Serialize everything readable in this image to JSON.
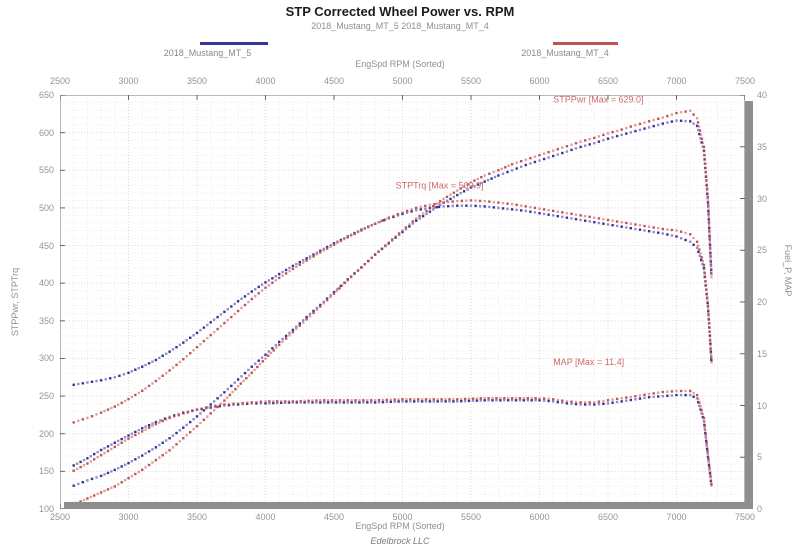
{
  "page": {
    "footer": "Edelbrock LLC"
  },
  "legend": {
    "items": [
      {
        "label": "2018_Mustang_MT_5",
        "color": "#34349b"
      },
      {
        "label": "2018_Mustang_MT_4",
        "color": "#c05454"
      }
    ]
  },
  "colors": {
    "grid_minor": "#f4e9e9",
    "grid_major": "#e8d5d5",
    "tick_mark": "#666666",
    "plot_border": "#b8b8b8",
    "shadow_bar": "#8e8e8e",
    "annotation_red": "#cc6a6a"
  },
  "chart_data": {
    "type": "scatter",
    "title": "STP Corrected Wheel Power vs. RPM",
    "subtitle": "2018_Mustang_MT_5 2018_Mustang_MT_4",
    "x_label": "EngSpd RPM  (Sorted)",
    "y_left_label": "STPPwr, STPTrq",
    "y_right_label": "Fuel_P, MAP",
    "x_range": [
      2500,
      7500
    ],
    "y_left_range": [
      100,
      650
    ],
    "y_right_range": [
      0,
      40
    ],
    "x_ticks": [
      2500,
      3000,
      3500,
      4000,
      4500,
      5000,
      5500,
      6000,
      6500,
      7000,
      7500
    ],
    "y_left_ticks": [
      650,
      600,
      550,
      500,
      450,
      400,
      350,
      300,
      250,
      200,
      150,
      100
    ],
    "y_right_ticks": [
      40,
      35,
      30,
      25,
      20,
      15,
      10,
      5,
      0
    ],
    "grid": "on",
    "legend_position": "top",
    "series": [
      {
        "name": "STPTrq 2018_Mustang_MT_5",
        "axis": "left",
        "color": "#34349b",
        "points": [
          [
            2600,
            265
          ],
          [
            2700,
            268
          ],
          [
            2800,
            271
          ],
          [
            2900,
            275
          ],
          [
            3000,
            281
          ],
          [
            3100,
            289
          ],
          [
            3200,
            298
          ],
          [
            3300,
            309
          ],
          [
            3400,
            321
          ],
          [
            3500,
            334
          ],
          [
            3600,
            348
          ],
          [
            3700,
            362
          ],
          [
            3800,
            376
          ],
          [
            3900,
            389
          ],
          [
            4000,
            401
          ],
          [
            4100,
            412
          ],
          [
            4200,
            423
          ],
          [
            4300,
            433
          ],
          [
            4400,
            443
          ],
          [
            4500,
            453
          ],
          [
            4600,
            462
          ],
          [
            4700,
            471
          ],
          [
            4800,
            479
          ],
          [
            4900,
            486
          ],
          [
            5000,
            492
          ],
          [
            5100,
            497
          ],
          [
            5200,
            500
          ],
          [
            5300,
            502
          ],
          [
            5400,
            503
          ],
          [
            5500,
            503
          ],
          [
            5600,
            502
          ],
          [
            5700,
            500
          ],
          [
            5800,
            498
          ],
          [
            5900,
            496
          ],
          [
            6000,
            493
          ],
          [
            6100,
            490
          ],
          [
            6200,
            487
          ],
          [
            6300,
            484
          ],
          [
            6400,
            481
          ],
          [
            6500,
            478
          ],
          [
            6600,
            475
          ],
          [
            6700,
            472
          ],
          [
            6800,
            469
          ],
          [
            6900,
            466
          ],
          [
            7000,
            462
          ],
          [
            7100,
            455
          ],
          [
            7150,
            447
          ],
          [
            7200,
            420
          ],
          [
            7230,
            368
          ],
          [
            7255,
            298
          ]
        ]
      },
      {
        "name": "STPPwr 2018_Mustang_MT_5",
        "axis": "left",
        "color": "#34349b",
        "points": [
          [
            2600,
            131
          ],
          [
            2700,
            138
          ],
          [
            2800,
            144
          ],
          [
            2900,
            152
          ],
          [
            3000,
            161
          ],
          [
            3100,
            171
          ],
          [
            3200,
            182
          ],
          [
            3300,
            194
          ],
          [
            3400,
            208
          ],
          [
            3500,
            223
          ],
          [
            3600,
            239
          ],
          [
            3700,
            255
          ],
          [
            3800,
            272
          ],
          [
            3900,
            289
          ],
          [
            4000,
            305
          ],
          [
            4100,
            322
          ],
          [
            4200,
            338
          ],
          [
            4300,
            355
          ],
          [
            4400,
            371
          ],
          [
            4500,
            388
          ],
          [
            4600,
            405
          ],
          [
            4700,
            421
          ],
          [
            4800,
            438
          ],
          [
            4900,
            453
          ],
          [
            5000,
            468
          ],
          [
            5100,
            483
          ],
          [
            5200,
            495
          ],
          [
            5300,
            507
          ],
          [
            5400,
            517
          ],
          [
            5500,
            527
          ],
          [
            5600,
            535
          ],
          [
            5700,
            543
          ],
          [
            5800,
            550
          ],
          [
            5900,
            557
          ],
          [
            6000,
            563
          ],
          [
            6100,
            569
          ],
          [
            6200,
            575
          ],
          [
            6300,
            581
          ],
          [
            6400,
            586
          ],
          [
            6500,
            592
          ],
          [
            6600,
            597
          ],
          [
            6700,
            602
          ],
          [
            6800,
            607
          ],
          [
            6900,
            612
          ],
          [
            7000,
            616
          ],
          [
            7100,
            615
          ],
          [
            7150,
            609
          ],
          [
            7200,
            576
          ],
          [
            7230,
            507
          ],
          [
            7255,
            412
          ]
        ]
      },
      {
        "name": "MAP 2018_Mustang_MT_5",
        "axis": "right",
        "color": "#34349b",
        "points": [
          [
            2600,
            4.2
          ],
          [
            2700,
            4.9
          ],
          [
            2800,
            5.7
          ],
          [
            2900,
            6.4
          ],
          [
            3000,
            7.1
          ],
          [
            3100,
            7.8
          ],
          [
            3200,
            8.4
          ],
          [
            3300,
            8.9
          ],
          [
            3400,
            9.3
          ],
          [
            3500,
            9.6
          ],
          [
            3600,
            9.8
          ],
          [
            3700,
            10.0
          ],
          [
            3800,
            10.1
          ],
          [
            3900,
            10.2
          ],
          [
            4000,
            10.2
          ],
          [
            4200,
            10.3
          ],
          [
            4400,
            10.3
          ],
          [
            4600,
            10.3
          ],
          [
            4800,
            10.3
          ],
          [
            5000,
            10.4
          ],
          [
            5200,
            10.4
          ],
          [
            5400,
            10.4
          ],
          [
            5600,
            10.5
          ],
          [
            5800,
            10.5
          ],
          [
            6000,
            10.5
          ],
          [
            6100,
            10.4
          ],
          [
            6200,
            10.2
          ],
          [
            6300,
            10.1
          ],
          [
            6400,
            10.1
          ],
          [
            6500,
            10.2
          ],
          [
            6600,
            10.4
          ],
          [
            6700,
            10.6
          ],
          [
            6800,
            10.8
          ],
          [
            6900,
            10.9
          ],
          [
            7000,
            11.0
          ],
          [
            7100,
            11.0
          ],
          [
            7150,
            10.7
          ],
          [
            7200,
            8.5
          ],
          [
            7230,
            5.0
          ],
          [
            7255,
            2.3
          ]
        ]
      },
      {
        "name": "STPTrq 2018_Mustang_MT_4",
        "axis": "left",
        "color": "#c05454",
        "points": [
          [
            2600,
            215
          ],
          [
            2700,
            221
          ],
          [
            2800,
            228
          ],
          [
            2900,
            236
          ],
          [
            3000,
            246
          ],
          [
            3100,
            257
          ],
          [
            3200,
            270
          ],
          [
            3300,
            284
          ],
          [
            3400,
            299
          ],
          [
            3500,
            315
          ],
          [
            3600,
            331
          ],
          [
            3700,
            347
          ],
          [
            3800,
            363
          ],
          [
            3900,
            379
          ],
          [
            4000,
            394
          ],
          [
            4100,
            407
          ],
          [
            4200,
            419
          ],
          [
            4300,
            430
          ],
          [
            4400,
            441
          ],
          [
            4500,
            451
          ],
          [
            4600,
            461
          ],
          [
            4700,
            470
          ],
          [
            4800,
            479
          ],
          [
            4900,
            487
          ],
          [
            5000,
            494
          ],
          [
            5100,
            500
          ],
          [
            5200,
            504
          ],
          [
            5300,
            507
          ],
          [
            5400,
            509
          ],
          [
            5500,
            510
          ],
          [
            5600,
            509
          ],
          [
            5700,
            507
          ],
          [
            5800,
            505
          ],
          [
            5900,
            502
          ],
          [
            6000,
            499
          ],
          [
            6100,
            496
          ],
          [
            6200,
            493
          ],
          [
            6300,
            490
          ],
          [
            6400,
            487
          ],
          [
            6500,
            484
          ],
          [
            6600,
            481
          ],
          [
            6700,
            478
          ],
          [
            6800,
            475
          ],
          [
            6900,
            472
          ],
          [
            7000,
            470
          ],
          [
            7100,
            465
          ],
          [
            7150,
            455
          ],
          [
            7200,
            424
          ],
          [
            7230,
            370
          ],
          [
            7255,
            295
          ]
        ]
      },
      {
        "name": "STPPwr 2018_Mustang_MT_4",
        "axis": "left",
        "color": "#c05454",
        "points": [
          [
            2600,
            106
          ],
          [
            2700,
            114
          ],
          [
            2800,
            122
          ],
          [
            2900,
            130
          ],
          [
            3000,
            141
          ],
          [
            3100,
            152
          ],
          [
            3200,
            165
          ],
          [
            3300,
            178
          ],
          [
            3400,
            194
          ],
          [
            3500,
            210
          ],
          [
            3600,
            227
          ],
          [
            3700,
            244
          ],
          [
            3800,
            263
          ],
          [
            3900,
            281
          ],
          [
            4000,
            300
          ],
          [
            4100,
            318
          ],
          [
            4200,
            335
          ],
          [
            4300,
            352
          ],
          [
            4400,
            369
          ],
          [
            4500,
            386
          ],
          [
            4600,
            404
          ],
          [
            4700,
            421
          ],
          [
            4800,
            438
          ],
          [
            4900,
            454
          ],
          [
            5000,
            470
          ],
          [
            5100,
            486
          ],
          [
            5200,
            499
          ],
          [
            5300,
            512
          ],
          [
            5400,
            523
          ],
          [
            5500,
            534
          ],
          [
            5600,
            543
          ],
          [
            5700,
            550
          ],
          [
            5800,
            558
          ],
          [
            5900,
            564
          ],
          [
            6000,
            570
          ],
          [
            6100,
            576
          ],
          [
            6200,
            582
          ],
          [
            6300,
            588
          ],
          [
            6400,
            593
          ],
          [
            6500,
            599
          ],
          [
            6600,
            604
          ],
          [
            6700,
            610
          ],
          [
            6800,
            615
          ],
          [
            6900,
            620
          ],
          [
            7000,
            626
          ],
          [
            7100,
            629
          ],
          [
            7150,
            619
          ],
          [
            7200,
            581
          ],
          [
            7230,
            509
          ],
          [
            7255,
            408
          ]
        ]
      },
      {
        "name": "MAP 2018_Mustang_MT_4",
        "axis": "right",
        "color": "#c05454",
        "points": [
          [
            2600,
            3.7
          ],
          [
            2700,
            4.4
          ],
          [
            2800,
            5.2
          ],
          [
            2900,
            6.0
          ],
          [
            3000,
            6.8
          ],
          [
            3100,
            7.5
          ],
          [
            3200,
            8.2
          ],
          [
            3300,
            8.8
          ],
          [
            3400,
            9.2
          ],
          [
            3500,
            9.6
          ],
          [
            3600,
            9.9
          ],
          [
            3700,
            10.1
          ],
          [
            3800,
            10.2
          ],
          [
            3900,
            10.3
          ],
          [
            4000,
            10.4
          ],
          [
            4200,
            10.4
          ],
          [
            4400,
            10.5
          ],
          [
            4600,
            10.5
          ],
          [
            4800,
            10.5
          ],
          [
            5000,
            10.6
          ],
          [
            5200,
            10.6
          ],
          [
            5400,
            10.6
          ],
          [
            5600,
            10.7
          ],
          [
            5800,
            10.7
          ],
          [
            6000,
            10.7
          ],
          [
            6100,
            10.6
          ],
          [
            6200,
            10.4
          ],
          [
            6300,
            10.3
          ],
          [
            6400,
            10.3
          ],
          [
            6500,
            10.5
          ],
          [
            6600,
            10.7
          ],
          [
            6700,
            10.9
          ],
          [
            6800,
            11.1
          ],
          [
            6900,
            11.3
          ],
          [
            7000,
            11.4
          ],
          [
            7100,
            11.4
          ],
          [
            7150,
            11.0
          ],
          [
            7200,
            8.8
          ],
          [
            7230,
            5.2
          ],
          [
            7255,
            2.4
          ]
        ]
      }
    ],
    "annotations": [
      {
        "text": "STPPwr  [Max = 629.0]",
        "x": 6100,
        "y": 640,
        "axis": "left",
        "color": "#cc6a6a"
      },
      {
        "text": "STPTrq  [Max = 509.9]",
        "x": 4950,
        "y": 526,
        "axis": "left",
        "color": "#cc6a6a"
      },
      {
        "text": "MAP  [Max = 11.4]",
        "x": 6100,
        "y": 13.9,
        "axis": "right",
        "color": "#cc6a6a"
      }
    ]
  }
}
